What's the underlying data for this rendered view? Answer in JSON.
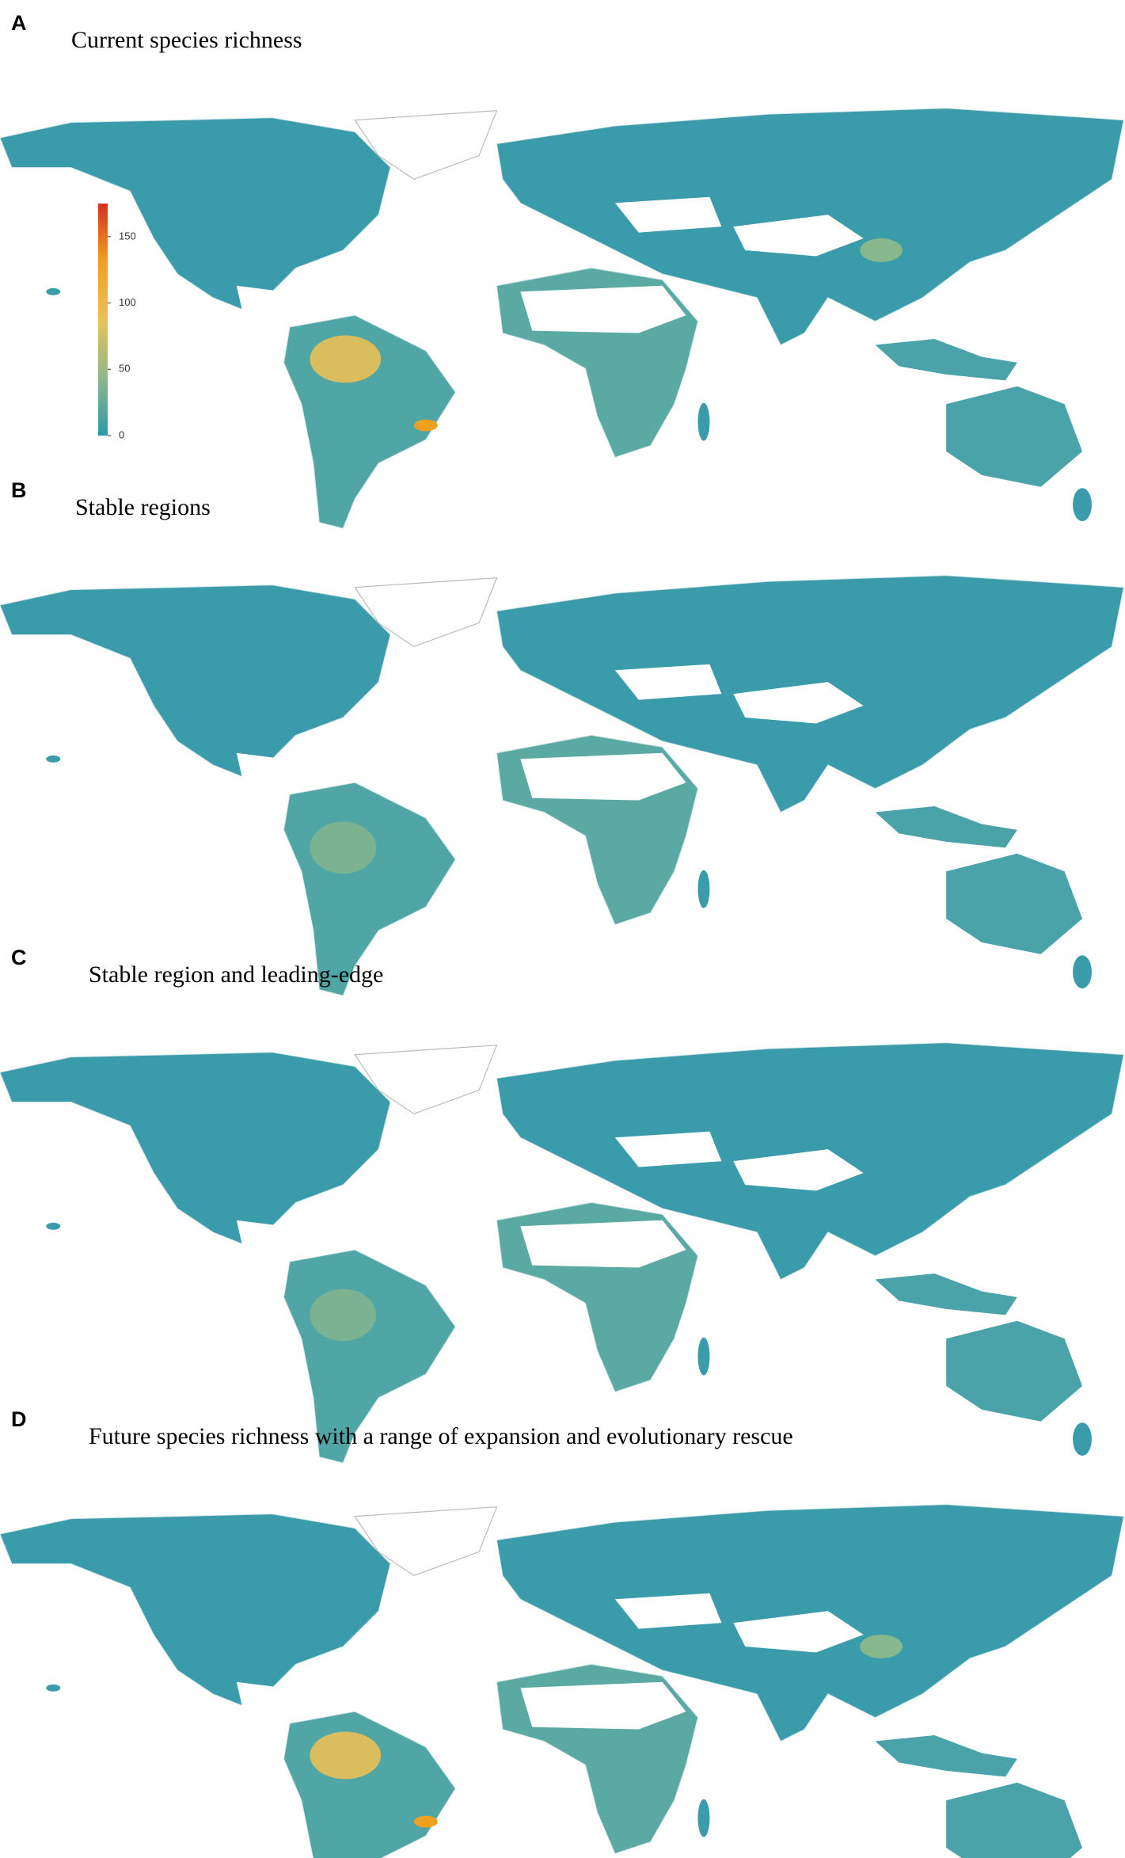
{
  "panels": [
    {
      "letter": "A",
      "title": "Current species richness"
    },
    {
      "letter": "B",
      "title": "Stable regions"
    },
    {
      "letter": "C",
      "title": "Stable region and leading-edge"
    },
    {
      "letter": "D",
      "title": "Future species richness with a range of expansion and evolutionary rescue"
    }
  ],
  "legend": {
    "lim": [
      0,
      175
    ],
    "ticks": [
      0,
      50,
      100,
      150
    ],
    "colors": [
      "#2b9aaa",
      "#8fb98a",
      "#e9c156",
      "#f0a020",
      "#d7301f"
    ]
  }
}
